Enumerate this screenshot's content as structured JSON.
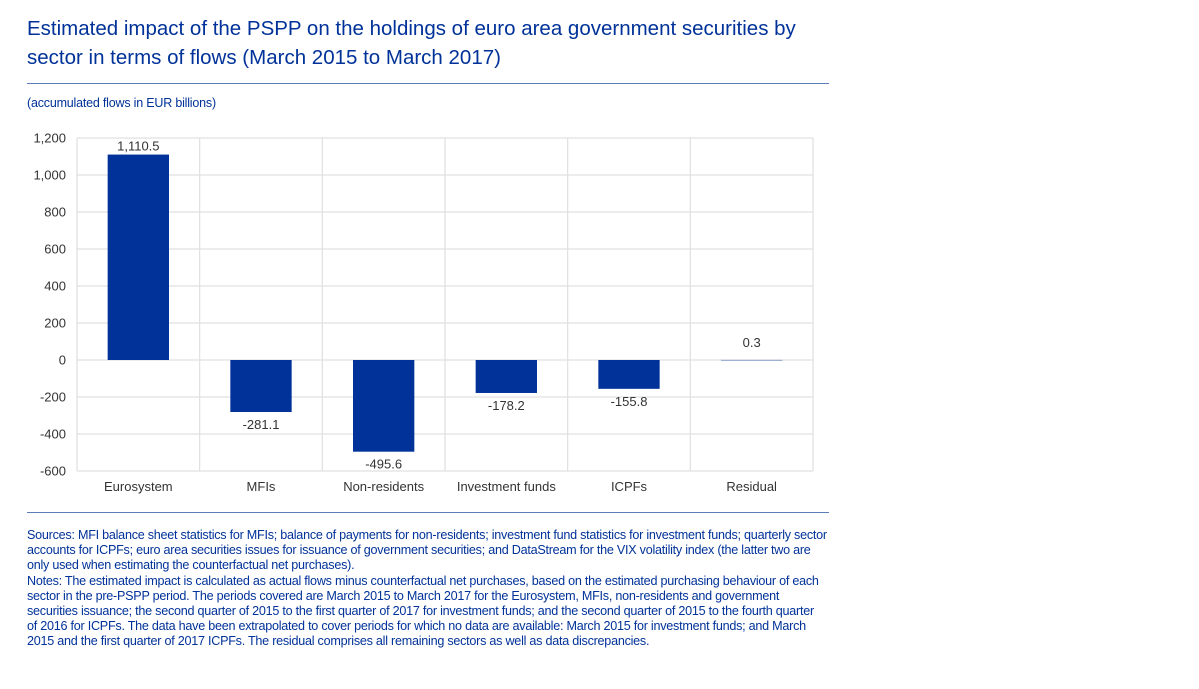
{
  "header": {
    "title": "Estimated impact of the PSPP on the holdings of euro area government securities by sector in terms of flows (March 2015 to March 2017)",
    "subtitle": "(accumulated flows in EUR billions)"
  },
  "colors": {
    "title": "#003299",
    "bar": "#003299",
    "grid": "#e0e0e0",
    "text": "#333333"
  },
  "chart_data": {
    "type": "bar",
    "title": "Estimated impact of the PSPP on the holdings of euro area government securities by sector in terms of flows (March 2015 to March 2017)",
    "subtitle": "(accumulated flows in EUR billions)",
    "xlabel": "",
    "ylabel": "",
    "categories": [
      "Eurosystem",
      "MFIs",
      "Non-residents",
      "Investment funds",
      "ICPFs",
      "Residual"
    ],
    "values": [
      1110.5,
      -281.1,
      -495.6,
      -178.2,
      -155.8,
      0.3
    ],
    "data_labels": [
      "1,110.5",
      "-281.1",
      "-495.6",
      "-178.2",
      "-155.8",
      "0.3"
    ],
    "ylim": [
      -600,
      1200
    ],
    "yticks": [
      -600,
      -400,
      -200,
      0,
      200,
      400,
      600,
      800,
      1000,
      1200
    ],
    "ytick_labels": [
      "-600",
      "-400",
      "-200",
      "0",
      "200",
      "400",
      "600",
      "800",
      "1,000",
      "1,200"
    ],
    "grid": true,
    "legend": "none"
  },
  "footer": {
    "sources": "Sources: MFI balance sheet statistics for MFIs; balance of payments for non-residents; investment fund statistics for investment funds; quarterly sector accounts for ICPFs; euro area securities issues for issuance of government securities; and DataStream for the VIX volatility index (the latter two are only used when estimating the counterfactual net purchases).",
    "notes": "Notes: The estimated impact is calculated as actual flows minus counterfactual net purchases, based on the estimated purchasing behaviour of each sector in the pre-PSPP period. The periods covered are March 2015 to March 2017 for the Eurosystem, MFIs, non-residents and government securities issuance; the second quarter of 2015 to the first quarter of 2017 for investment funds; and the second quarter of 2015 to the fourth quarter of 2016 for ICPFs. The data have been extrapolated to cover periods for which no data are available: March 2015 for investment funds; and March 2015 and the first quarter of 2017 ICPFs. The residual comprises all remaining sectors as well as data discrepancies."
  }
}
